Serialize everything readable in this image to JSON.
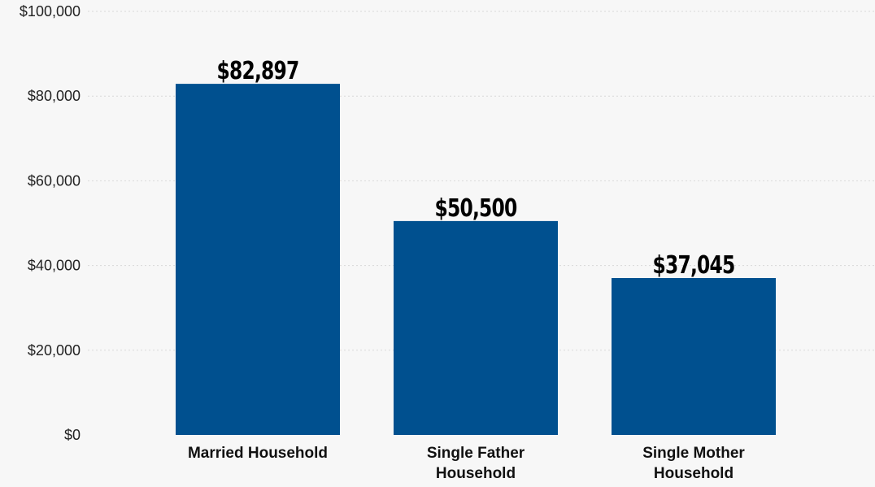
{
  "chart_data": {
    "type": "bar",
    "categories": [
      [
        "Married Household"
      ],
      [
        "Single Father",
        "Household"
      ],
      [
        "Single Mother",
        "Household"
      ]
    ],
    "values": [
      82897,
      50500,
      37045
    ],
    "data_labels": [
      "$82,897",
      "$50,500",
      "$37,045"
    ],
    "yticks": [
      0,
      20000,
      40000,
      60000,
      80000,
      100000
    ],
    "ytick_labels": [
      "$0",
      "$20,000",
      "$40,000",
      "$60,000",
      "$80,000",
      "$100,000"
    ],
    "ylim": [
      0,
      100000
    ],
    "grid": true,
    "legend": "none",
    "bar_color": "#00508f",
    "background": "#f7f7f7"
  }
}
